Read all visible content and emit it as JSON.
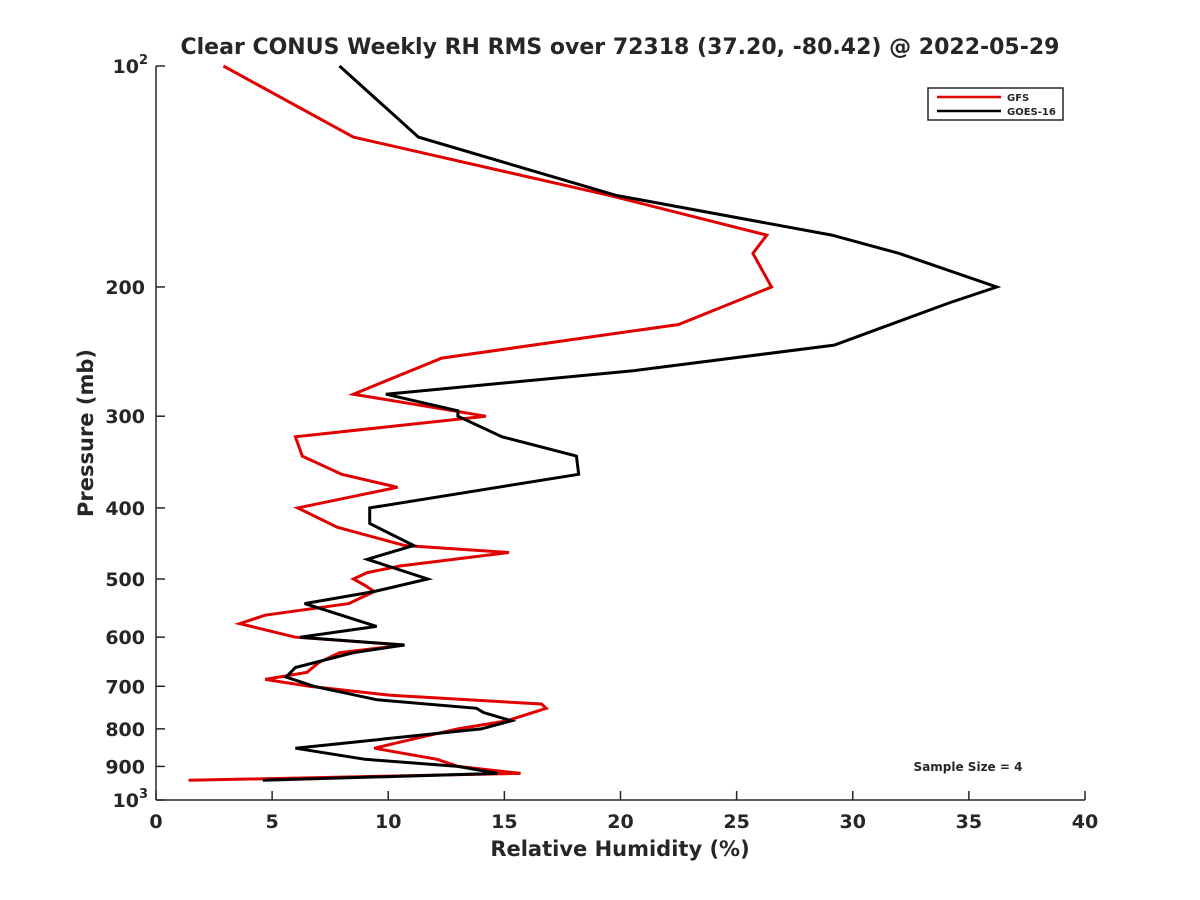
{
  "chart_data": {
    "type": "line",
    "title": "Clear CONUS Weekly RH RMS over 72318 (37.20, -80.42) @ 2022-05-29",
    "xlabel": "Relative Humidity (%)",
    "ylabel": "Pressure (mb)",
    "xlim": [
      0,
      40
    ],
    "ylim": [
      100,
      1000
    ],
    "y_scale": "log",
    "y_reversed": true,
    "x_ticks": [
      "0",
      "5",
      "10",
      "15",
      "20",
      "25",
      "30",
      "35",
      "40"
    ],
    "y_ticks": [
      {
        "value": 100,
        "label": "10",
        "sup": "2"
      },
      {
        "value": 200,
        "label": "200"
      },
      {
        "value": 300,
        "label": "300"
      },
      {
        "value": 400,
        "label": "400"
      },
      {
        "value": 500,
        "label": "500"
      },
      {
        "value": 600,
        "label": "600"
      },
      {
        "value": 700,
        "label": "700"
      },
      {
        "value": 800,
        "label": "800"
      },
      {
        "value": 900,
        "label": "900"
      },
      {
        "value": 1000,
        "label": "10",
        "sup": "3"
      }
    ],
    "legend_position": "top-right",
    "annotation": "Sample Size = 4",
    "series": [
      {
        "name": "GFS",
        "color": "#e00000",
        "points": [
          [
            2.9,
            100
          ],
          [
            8.5,
            125
          ],
          [
            19.5,
            150
          ],
          [
            26.3,
            170
          ],
          [
            25.7,
            180
          ],
          [
            26.5,
            200
          ],
          [
            22.5,
            225
          ],
          [
            12.3,
            250
          ],
          [
            8.5,
            280
          ],
          [
            14.2,
            300
          ],
          [
            6.0,
            320
          ],
          [
            6.3,
            340
          ],
          [
            8.0,
            360
          ],
          [
            10.4,
            375
          ],
          [
            6.1,
            400
          ],
          [
            7.8,
            425
          ],
          [
            10.7,
            450
          ],
          [
            15.2,
            460
          ],
          [
            10.5,
            480
          ],
          [
            9.1,
            490
          ],
          [
            8.5,
            500
          ],
          [
            9.0,
            510
          ],
          [
            9.4,
            520
          ],
          [
            8.3,
            540
          ],
          [
            4.7,
            560
          ],
          [
            3.6,
            575
          ],
          [
            6.0,
            600
          ],
          [
            10.7,
            615
          ],
          [
            7.9,
            630
          ],
          [
            7.0,
            650
          ],
          [
            6.5,
            670
          ],
          [
            4.7,
            685
          ],
          [
            6.6,
            700
          ],
          [
            10.1,
            720
          ],
          [
            16.6,
            740
          ],
          [
            16.8,
            750
          ],
          [
            15.1,
            780
          ],
          [
            13.0,
            800
          ],
          [
            11.5,
            820
          ],
          [
            9.4,
            850
          ],
          [
            12.1,
            880
          ],
          [
            13.0,
            900
          ],
          [
            15.7,
            920
          ],
          [
            1.4,
            940
          ]
        ]
      },
      {
        "name": "GOES-16",
        "color": "#000000",
        "points": [
          [
            7.9,
            100
          ],
          [
            11.3,
            125
          ],
          [
            19.8,
            150
          ],
          [
            29.1,
            170
          ],
          [
            32.0,
            180
          ],
          [
            36.2,
            200
          ],
          [
            34.2,
            210
          ],
          [
            29.2,
            240
          ],
          [
            20.6,
            260
          ],
          [
            9.9,
            280
          ],
          [
            13.0,
            295
          ],
          [
            13.0,
            300
          ],
          [
            14.9,
            320
          ],
          [
            18.1,
            340
          ],
          [
            18.2,
            360
          ],
          [
            9.2,
            400
          ],
          [
            9.2,
            420
          ],
          [
            11.1,
            450
          ],
          [
            9.1,
            470
          ],
          [
            11.7,
            500
          ],
          [
            9.4,
            520
          ],
          [
            6.4,
            540
          ],
          [
            7.2,
            550
          ],
          [
            9.5,
            580
          ],
          [
            6.2,
            600
          ],
          [
            10.7,
            615
          ],
          [
            8.5,
            630
          ],
          [
            6.0,
            660
          ],
          [
            5.6,
            680
          ],
          [
            6.8,
            700
          ],
          [
            9.5,
            730
          ],
          [
            13.8,
            750
          ],
          [
            14.1,
            760
          ],
          [
            15.3,
            780
          ],
          [
            14.0,
            800
          ],
          [
            6.0,
            850
          ],
          [
            9.0,
            880
          ],
          [
            13.0,
            900
          ],
          [
            14.7,
            920
          ],
          [
            4.6,
            940
          ]
        ]
      }
    ]
  }
}
